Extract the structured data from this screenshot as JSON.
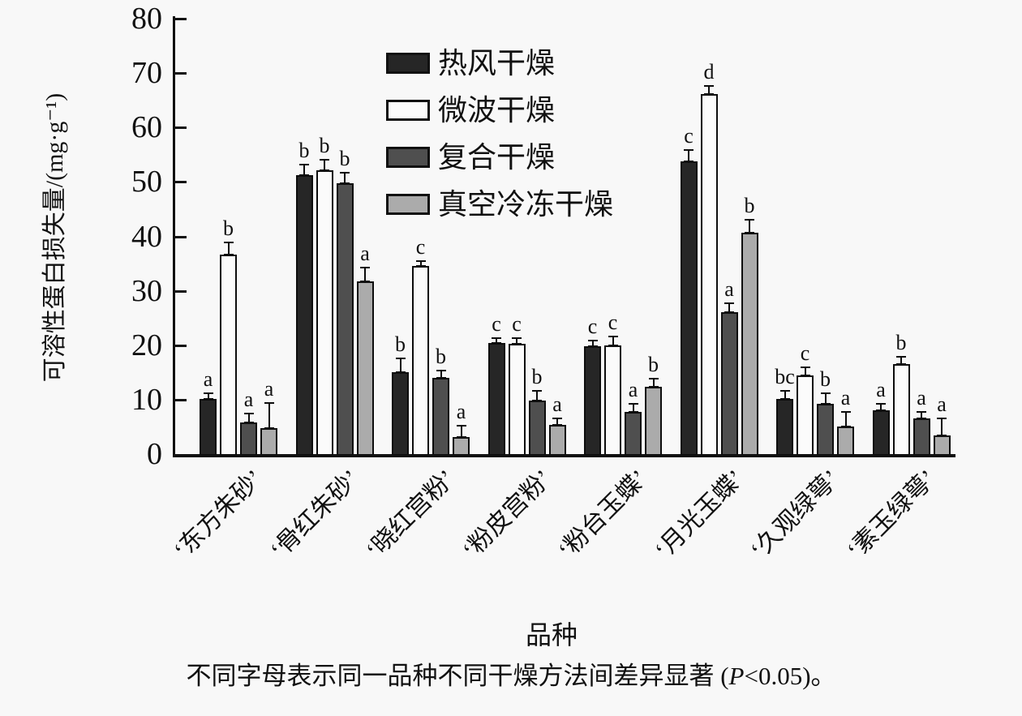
{
  "page": {
    "background": "#f8f8f8"
  },
  "axis": {
    "ylabel": "可溶性蛋白损失量/(mg·g⁻¹)",
    "xlabel": "品种"
  },
  "caption": {
    "part1": "不同字母表示同一品种不同干燥方法间差异显著 (",
    "p": "P",
    "part2": "<0.05)。"
  },
  "colors": {
    "hot_air": "#262626",
    "microwave": "#fbfbfb",
    "composite": "#4f4f4f",
    "vacuum_freeze": "#ababab",
    "axis": "#111111"
  },
  "chart_data": {
    "type": "bar",
    "title": "",
    "xlabel": "品种",
    "ylabel": "可溶性蛋白损失量/(mg·g⁻¹)",
    "ylim": [
      0,
      80
    ],
    "yticks": [
      0,
      10,
      20,
      30,
      40,
      50,
      60,
      70,
      80
    ],
    "grid": false,
    "legend_position": "upper-left-inside",
    "categories": [
      "‘东方朱砂’",
      "‘骨红朱砂’",
      "‘晓红宫粉’",
      "‘粉皮宫粉’",
      "‘粉台玉蝶’",
      "‘月光玉蝶’",
      "‘久观绿萼’",
      "‘素玉绿萼’"
    ],
    "series": [
      {
        "name": "热风干燥",
        "fill": "#262626",
        "values": [
          10.2,
          51.3,
          15.0,
          20.4,
          19.8,
          53.8,
          10.2,
          8.0
        ],
        "errors": [
          0.9,
          1.9,
          2.6,
          0.9,
          1.0,
          2.0,
          1.4,
          1.3
        ],
        "letters": [
          "a",
          "b",
          "b",
          "c",
          "c",
          "c",
          "bc",
          "a"
        ]
      },
      {
        "name": "微波干燥",
        "fill": "#fbfbfb",
        "values": [
          36.6,
          52.1,
          34.5,
          20.2,
          20.0,
          66.2,
          14.5,
          16.5
        ],
        "errors": [
          2.3,
          2.0,
          1.0,
          1.1,
          1.6,
          1.4,
          1.4,
          1.4
        ],
        "letters": [
          "b",
          "b",
          "c",
          "c",
          "c",
          "d",
          "c",
          "b"
        ]
      },
      {
        "name": "复合干燥",
        "fill": "#4f4f4f",
        "values": [
          5.8,
          49.8,
          14.0,
          9.9,
          7.8,
          26.1,
          9.3,
          6.6
        ],
        "errors": [
          1.6,
          1.9,
          1.4,
          1.7,
          1.4,
          1.6,
          1.8,
          1.2
        ],
        "letters": [
          "a",
          "b",
          "b",
          "b",
          "a",
          "a",
          "b",
          "a"
        ]
      },
      {
        "name": "真空冷冻干燥",
        "fill": "#ababab",
        "values": [
          4.8,
          31.8,
          3.1,
          5.4,
          12.3,
          40.7,
          5.1,
          3.5
        ],
        "errors": [
          4.6,
          2.5,
          2.1,
          1.2,
          1.5,
          2.4,
          2.6,
          3.0
        ],
        "letters": [
          "a",
          "a",
          "a",
          "a",
          "b",
          "b",
          "a",
          "a"
        ]
      }
    ]
  }
}
